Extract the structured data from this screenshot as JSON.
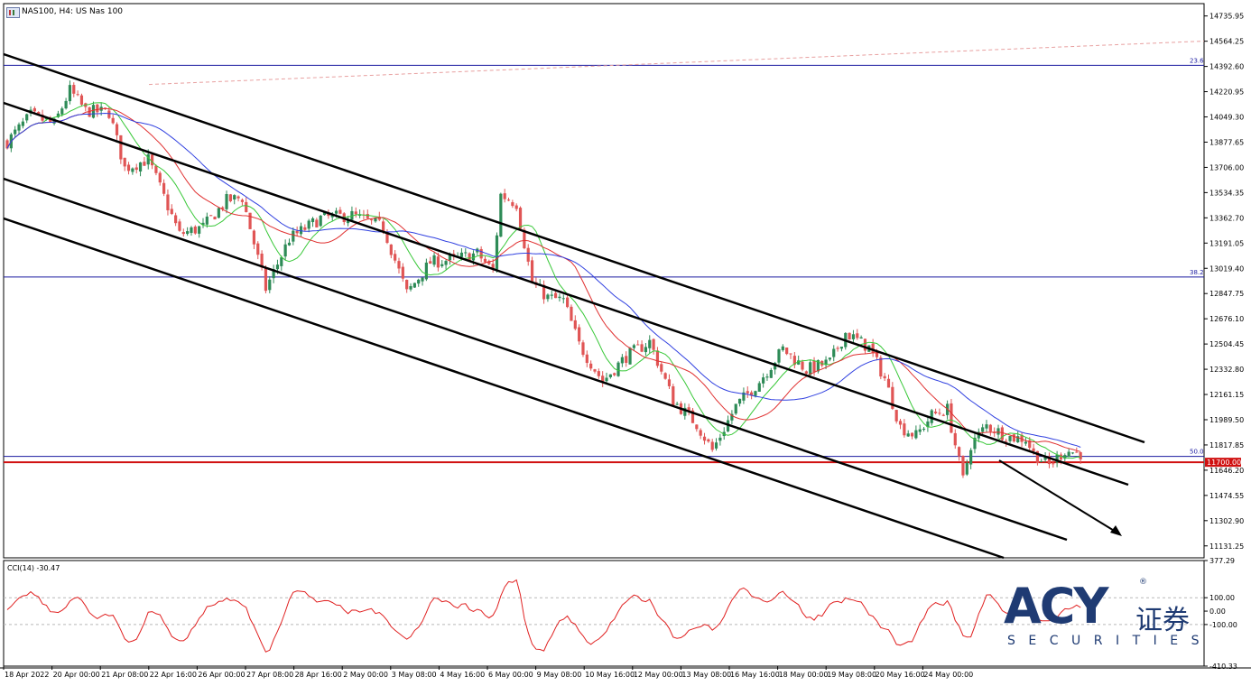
{
  "header": {
    "symbol": "NAS100, H4:  US Nas 100",
    "indicator": "CCI(14) -30.47"
  },
  "logo": {
    "brand": "ACY",
    "cn": "证券",
    "sub": "SECURITIES",
    "reg": "®"
  },
  "colors": {
    "bull": "#2e8b57",
    "bear": "#e05555",
    "ma_fast": "#38c838",
    "ma_mid": "#e03030",
    "ma_slow": "#3040e0",
    "fib": "#1a1aa0",
    "support": "#d01010",
    "cci": "#e02020",
    "channel": "#000000"
  },
  "chart_data": {
    "type": "candlestick",
    "price_axis": {
      "ticks": [
        "14735.95",
        "14564.25",
        "14392.60",
        "14220.95",
        "14049.30",
        "13877.65",
        "13706.00",
        "13534.35",
        "13362.70",
        "13191.05",
        "13019.40",
        "12847.75",
        "12676.10",
        "12504.45",
        "12332.80",
        "12161.15",
        "11989.50",
        "11817.85",
        "11646.20",
        "11474.55",
        "11302.90",
        "11131.25"
      ],
      "range": [
        11050,
        14820
      ]
    },
    "time_axis": {
      "labels": [
        "18 Apr 2022",
        "20 Apr 00:00",
        "21 Apr 08:00",
        "22 Apr 16:00",
        "26 Apr 00:00",
        "27 Apr 08:00",
        "28 Apr 16:00",
        "2 May 00:00",
        "3 May 08:00",
        "4 May 16:00",
        "6 May 00:00",
        "9 May 08:00",
        "10 May 16:00",
        "12 May 00:00",
        "13 May 08:00",
        "16 May 16:00",
        "18 May 00:00",
        "19 May 08:00",
        "20 May 16:00",
        "24 May 00:00"
      ]
    },
    "levels": [
      {
        "name": "23.6",
        "price": 14400
      },
      {
        "name": "38.2",
        "price": 12960
      },
      {
        "name": "50.0",
        "price": 11740
      },
      {
        "name": "11700.00",
        "price": 11700
      }
    ],
    "cci_axis": {
      "ticks": [
        "377.29",
        "100.00",
        "0.00",
        "-100.00",
        "-410.33"
      ],
      "range": [
        -410.33,
        377.29
      ]
    }
  }
}
